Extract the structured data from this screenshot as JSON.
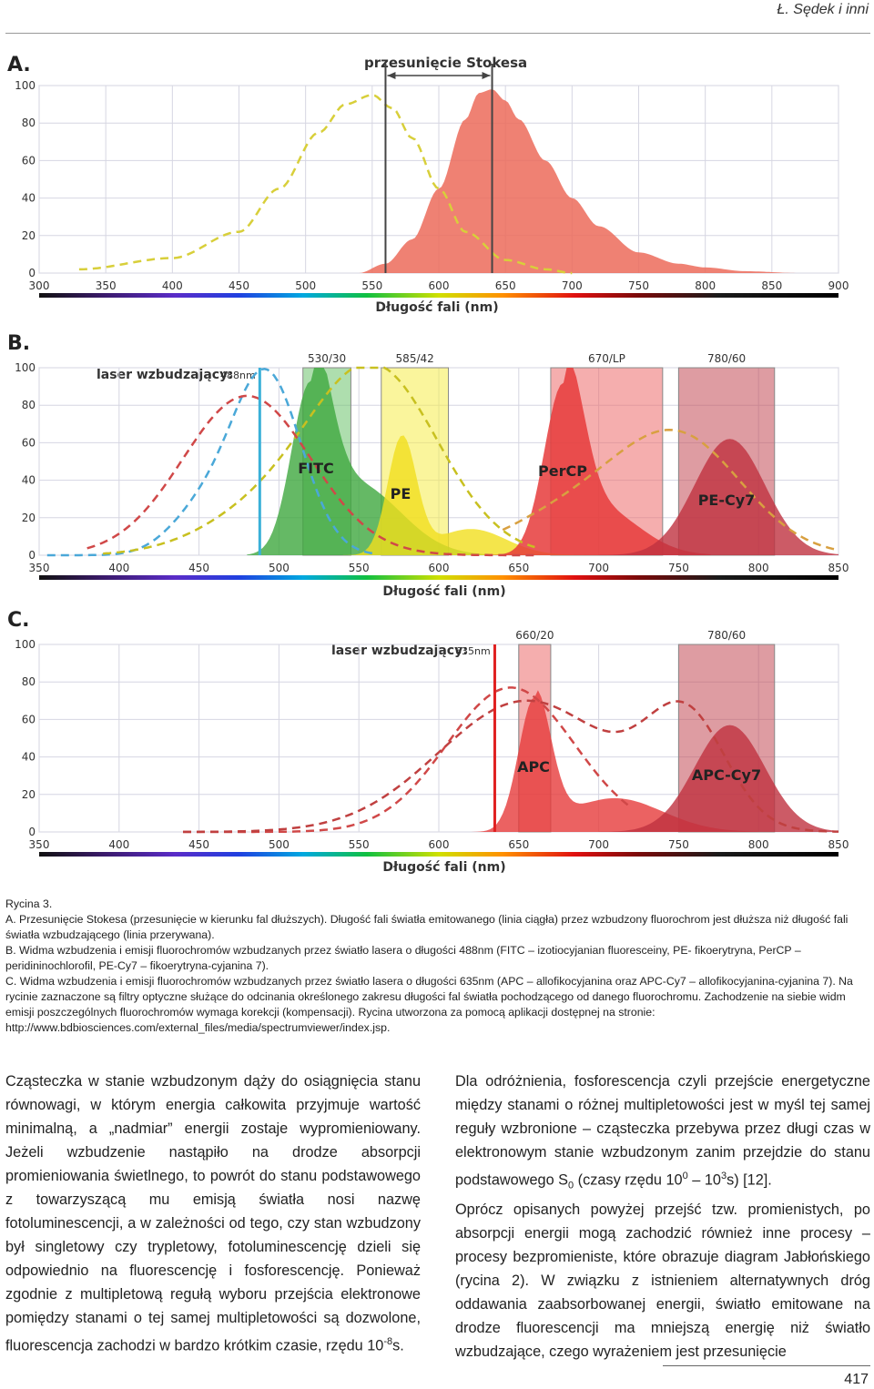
{
  "header": {
    "author": "Ł. Sędek i inni"
  },
  "figures": {
    "a": {
      "panel": "A.",
      "annotation": "przesunięcie Stokesa",
      "xlabel": "Długość fali (nm)",
      "yticks": [
        "100",
        "80",
        "60",
        "40",
        "20",
        "0"
      ],
      "xticks": [
        "300",
        "350",
        "400",
        "450",
        "500",
        "550",
        "600",
        "650",
        "700",
        "750",
        "800",
        "850",
        "900"
      ]
    },
    "b": {
      "panel": "B.",
      "laser_label": "laser wzbudzający:",
      "laser_wavelength": "488nm",
      "filters": [
        "530/30",
        "585/42",
        "670/LP",
        "780/60"
      ],
      "dyes": [
        "FITC",
        "PE",
        "PerCP",
        "PE-Cy7"
      ],
      "xlabel": "Długość fali (nm)",
      "yticks": [
        "100",
        "80",
        "60",
        "40",
        "20",
        "0"
      ],
      "xticks": [
        "350",
        "400",
        "450",
        "500",
        "550",
        "600",
        "650",
        "700",
        "750",
        "800",
        "850"
      ]
    },
    "c": {
      "panel": "C.",
      "laser_label": "laser wzbudzający:",
      "laser_wavelength": "635nm",
      "filters": [
        "660/20",
        "780/60"
      ],
      "dyes": [
        "APC",
        "APC-Cy7"
      ],
      "xlabel": "Długość fali (nm)",
      "yticks": [
        "100",
        "80",
        "60",
        "40",
        "20",
        "0"
      ],
      "xticks": [
        "350",
        "400",
        "450",
        "500",
        "550",
        "600",
        "650",
        "700",
        "750",
        "800",
        "850"
      ]
    }
  },
  "chart_data": [
    {
      "type": "area",
      "panel": "A",
      "xlim": [
        300,
        900
      ],
      "ylim": [
        0,
        100
      ],
      "series": [
        {
          "style": "dashed excitation",
          "x": [
            330,
            400,
            450,
            480,
            510,
            530,
            550,
            565,
            580,
            600,
            620,
            650,
            680,
            700
          ],
          "y": [
            2,
            8,
            22,
            45,
            75,
            90,
            95,
            88,
            72,
            45,
            22,
            7,
            2,
            0
          ]
        },
        {
          "style": "filled emission",
          "x": [
            540,
            560,
            580,
            600,
            620,
            630,
            640,
            650,
            660,
            680,
            700,
            720,
            750,
            780,
            800,
            830,
            870
          ],
          "y": [
            0,
            5,
            18,
            45,
            82,
            96,
            98,
            92,
            82,
            60,
            40,
            25,
            11,
            5,
            3,
            1,
            0
          ]
        }
      ],
      "markers": [
        560,
        640
      ]
    },
    {
      "type": "area",
      "panel": "B",
      "xlim": [
        350,
        850
      ],
      "ylim": [
        0,
        100
      ],
      "laser": 488,
      "filters": [
        [
          515,
          545
        ],
        [
          564,
          606
        ],
        [
          670,
          740
        ],
        [
          750,
          810
        ]
      ]
    },
    {
      "type": "area",
      "panel": "C",
      "xlim": [
        350,
        850
      ],
      "ylim": [
        0,
        100
      ],
      "laser": 635,
      "filters": [
        [
          650,
          670
        ],
        [
          750,
          810
        ]
      ]
    }
  ],
  "caption": {
    "title": "Rycina 3.",
    "a": "A. Przesunięcie Stokesa (przesunięcie w kierunku fal dłuższych). Długość fali światła emitowanego (linia ciągła) przez wzbudzony fluorochrom jest dłuższa niż długość fali światła wzbudzającego (linia przerywana).",
    "b": "B. Widma wzbudzenia i emisji fluorochromów wzbudzanych przez światło lasera o długości 488nm (FITC – izotiocyjanian fluoresceiny, PE- fikoerytryna, PerCP – peridininochlorofil, PE-Cy7 – fikoerytryna-cyjanina 7).",
    "c": "C. Widma wzbudzenia i emisji fluorochromów wzbudzanych przez światło lasera o długości 635nm (APC – allofikocyjanina oraz APC-Cy7 – allofikocyjanina-cyjanina 7). Na rycinie zaznaczone są filtry optyczne służące do odcinania określonego zakresu długości fal światła pochodzącego od danego fluorochromu. Zachodzenie na siebie widm emisji poszczególnych fluorochromów wymaga korekcji (kompensacji). Rycina utworzona za pomocą aplikacji dostępnej na stronie: http://www.bdbiosciences.com/external_files/media/spectrumviewer/index.jsp."
  },
  "body": {
    "left": {
      "text": "Cząsteczka w stanie wzbudzonym dąży do osiągnięcia stanu równowagi, w którym energia całkowita przyjmuje wartość minimalną, a „nadmiar” energii zostaje wypromieniowany. Jeżeli wzbudzenie nastąpiło na drodze absorpcji promieniowania świetlnego, to powrót do stanu podstawowego z towarzyszącą mu emisją światła nosi nazwę fotoluminescencji, a w zależności od tego, czy stan wzbudzony był singletowy czy trypletowy, fotoluminescencję dzieli się odpowiednio na fluorescencję i fosforescencję. Ponieważ zgodnie z multipletową regułą wyboru przejścia elektronowe pomiędzy stanami o tej samej multipletowości są dozwolone, fluorescencja zachodzi w bardzo krótkim czasie, rzędu 10",
      "exp": "-8",
      "end": "s."
    },
    "right": {
      "p1a": "Dla odróżnienia, fosforescencja czyli przejście energetyczne między stanami o różnej multipletowości jest w myśl tej samej reguły wzbronione – cząsteczka przebywa przez długi czas w elektronowym stanie wzbudzonym zanim przejdzie do stanu podstawowego S",
      "sub": "0",
      "p1b": " (czasy rzędu 10",
      "exp1": "0",
      "p1c": " – 10",
      "exp2": "3",
      "p1d": "s) [12].",
      "p2": "Oprócz opisanych powyżej przejść tzw. promienistych, po absorpcji energii mogą zachodzić również inne procesy – procesy bezpromieniste, które obrazuje diagram Jabłońskiego (rycina 2). W związku z istnieniem alternatywnych dróg oddawania zaabsorbowanej energii, światło emitowane na drodze fluorescencji ma mniejszą energię niż światło wzbudzające, czego wyrażeniem jest przesunięcie"
    }
  },
  "footer": {
    "page_number": "417"
  }
}
